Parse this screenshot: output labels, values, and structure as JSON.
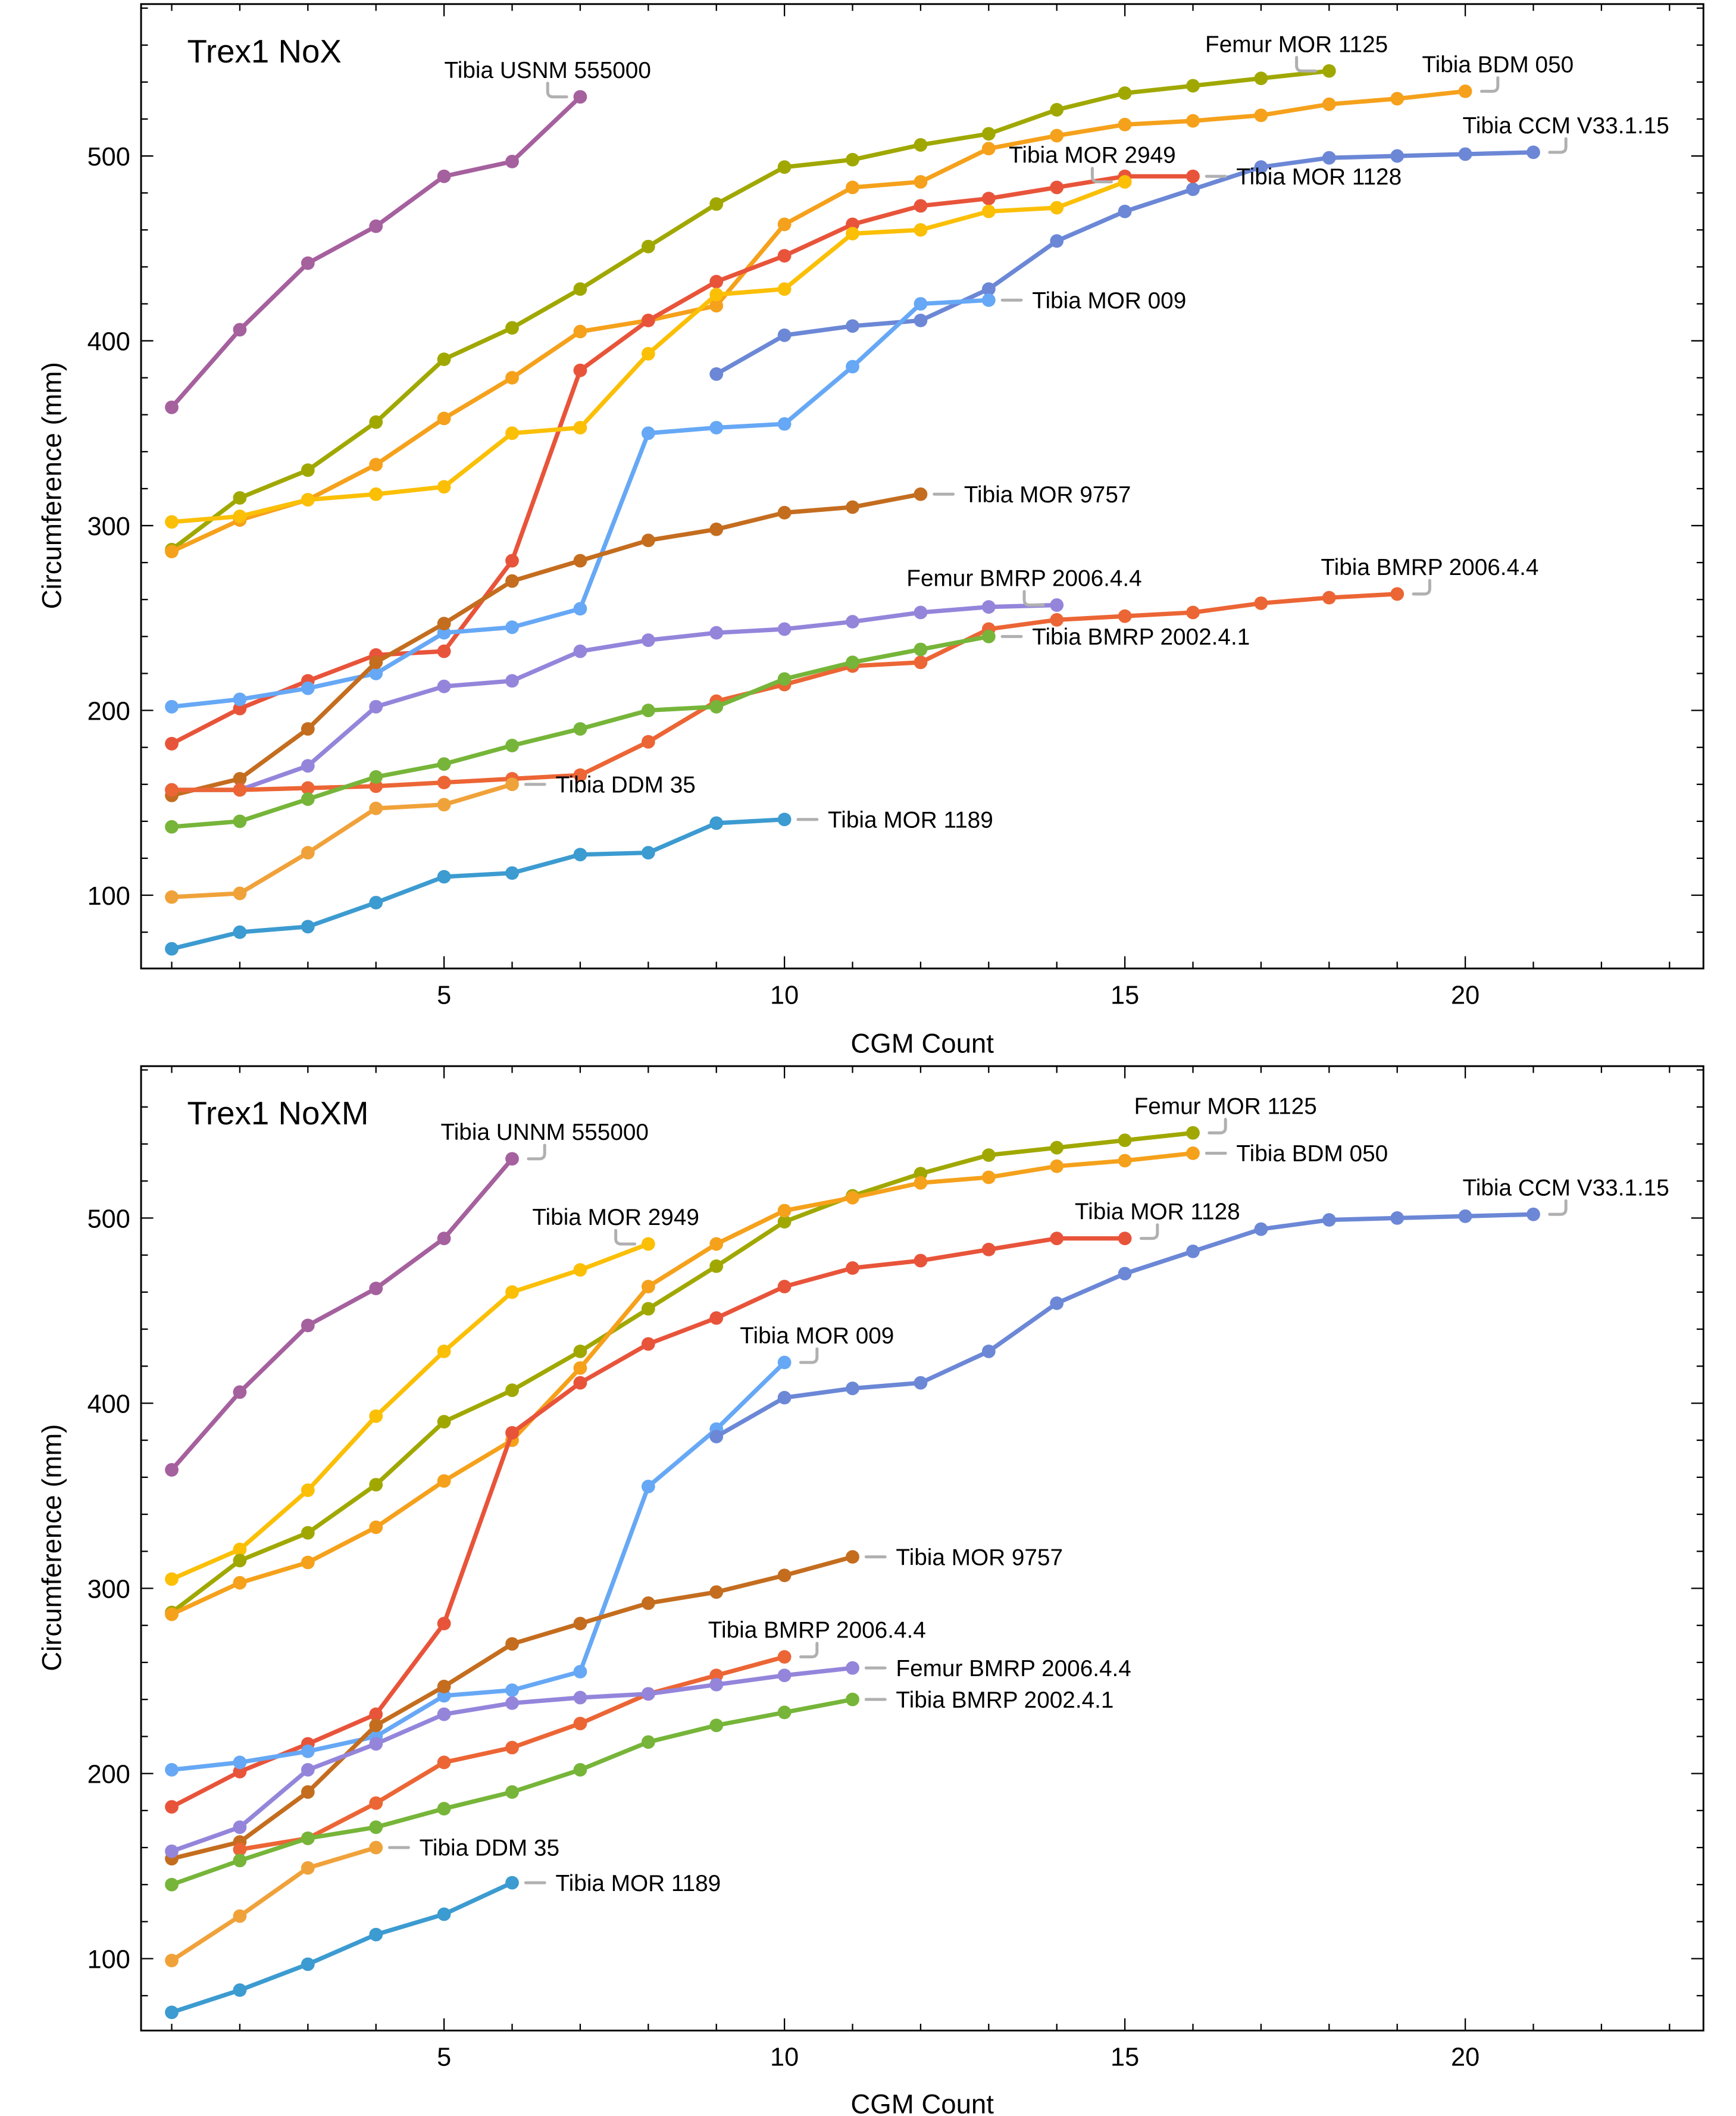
{
  "chart_data": [
    {
      "type": "line",
      "title": "Trex1 NoX",
      "xlabel": "CGM Count",
      "ylabel": "Circumference (mm)",
      "xlim": [
        0.55,
        23.5
      ],
      "ylim": [
        60,
        582
      ],
      "x_ticks": [
        5,
        10,
        15,
        20
      ],
      "y_ticks": [
        100,
        200,
        300,
        400,
        500
      ],
      "grid": false,
      "legend": "inline-labels",
      "series": [
        {
          "name": "Tibia USNM 555000",
          "color": "#a5609e",
          "x_start": 1,
          "values": [
            364,
            406,
            442,
            462,
            489,
            497,
            532
          ],
          "label_pos": "above-left"
        },
        {
          "name": "Femur MOR 1125",
          "color": "#a0a800",
          "x_start": 1,
          "values": [
            287,
            315,
            330,
            356,
            390,
            407,
            428,
            451,
            474,
            494,
            498,
            506,
            512,
            525,
            534,
            538,
            542,
            546
          ],
          "label_pos": "above-left"
        },
        {
          "name": "Tibia BDM 050",
          "color": "#f5a11b",
          "x_start": 1,
          "values": [
            286,
            303,
            314,
            333,
            358,
            380,
            405,
            411,
            419,
            463,
            483,
            486,
            504,
            511,
            517,
            519,
            522,
            528,
            531,
            535
          ],
          "label_pos": "above-right"
        },
        {
          "name": "Tibia CCM V33.1.15",
          "color": "#6b87d6",
          "x_start": 9,
          "values": [
            382,
            403,
            408,
            411,
            428,
            454,
            470,
            482,
            494,
            499,
            500,
            501,
            502
          ],
          "label_pos": "above-right"
        },
        {
          "name": "Tibia MOR 1128",
          "color": "#e8543a",
          "x_start": 1,
          "values": [
            182,
            201,
            216,
            230,
            232,
            281,
            384,
            411,
            432,
            446,
            463,
            473,
            477,
            483,
            489,
            489
          ],
          "label_pos": "right"
        },
        {
          "name": "Tibia MOR 2949",
          "color": "#fbbf06",
          "x_start": 1,
          "values": [
            302,
            305,
            314,
            317,
            321,
            350,
            353,
            393,
            425,
            428,
            458,
            460,
            470,
            472,
            486
          ],
          "label_pos": "above-left"
        },
        {
          "name": "Tibia MOR 009",
          "color": "#66a8f5",
          "x_start": 1,
          "values": [
            202,
            206,
            212,
            220,
            242,
            245,
            255,
            350,
            353,
            355,
            386,
            420,
            422
          ],
          "label_pos": "right"
        },
        {
          "name": "Tibia MOR 9757",
          "color": "#c46d1f",
          "x_start": 1,
          "values": [
            154,
            163,
            190,
            226,
            247,
            270,
            281,
            292,
            298,
            307,
            310,
            317
          ],
          "label_pos": "right"
        },
        {
          "name": "Femur BMRP 2006.4.4",
          "color": "#9485db",
          "x_start": 1,
          "values": [
            157,
            157,
            170,
            202,
            213,
            216,
            232,
            238,
            242,
            244,
            248,
            253,
            256,
            257
          ],
          "label_pos": "above-left"
        },
        {
          "name": "Tibia BMRP 2006.4.4",
          "color": "#ec6535",
          "x_start": 1,
          "values": [
            157,
            157,
            158,
            159,
            161,
            163,
            165,
            183,
            205,
            214,
            224,
            226,
            244,
            249,
            251,
            253,
            258,
            261,
            263
          ],
          "label_pos": "above-right"
        },
        {
          "name": "Tibia BMRP 2002.4.1",
          "color": "#76b539",
          "x_start": 1,
          "values": [
            137,
            140,
            152,
            164,
            171,
            181,
            190,
            200,
            202,
            217,
            226,
            233,
            240
          ],
          "label_pos": "right"
        },
        {
          "name": "Tibia DDM 35",
          "color": "#f0a23a",
          "x_start": 1,
          "values": [
            99,
            101,
            123,
            147,
            149,
            160
          ],
          "label_pos": "right"
        },
        {
          "name": "Tibia MOR 1189",
          "color": "#3c9bd0",
          "x_start": 1,
          "values": [
            71,
            80,
            83,
            96,
            110,
            112,
            122,
            123,
            139,
            141
          ],
          "label_pos": "right"
        }
      ]
    },
    {
      "type": "line",
      "title": "Trex1 NoXM",
      "xlabel": "CGM Count",
      "ylabel": "Circumference (mm)",
      "xlim": [
        0.55,
        23.5
      ],
      "ylim": [
        60,
        582
      ],
      "x_ticks": [
        5,
        10,
        15,
        20
      ],
      "y_ticks": [
        100,
        200,
        300,
        400,
        500
      ],
      "grid": false,
      "legend": "inline-labels",
      "series": [
        {
          "name": "Tibia UNNM 555000",
          "color": "#a5609e",
          "x_start": 1,
          "values": [
            364,
            406,
            442,
            462,
            489,
            532
          ],
          "label_pos": "above-right"
        },
        {
          "name": "Tibia MOR 2949",
          "color": "#fbbf06",
          "x_start": 1,
          "values": [
            305,
            321,
            353,
            393,
            428,
            460,
            472,
            486
          ],
          "label_pos": "above-left"
        },
        {
          "name": "Femur MOR 1125",
          "color": "#a0a800",
          "x_start": 1,
          "values": [
            287,
            315,
            330,
            356,
            390,
            407,
            428,
            451,
            474,
            498,
            512,
            524,
            534,
            538,
            542,
            546
          ],
          "label_pos": "above-right"
        },
        {
          "name": "Tibia BDM 050",
          "color": "#f5a11b",
          "x_start": 1,
          "values": [
            286,
            303,
            314,
            333,
            358,
            380,
            419,
            463,
            486,
            504,
            511,
            519,
            522,
            528,
            531,
            535
          ],
          "label_pos": "right"
        },
        {
          "name": "Tibia MOR 1128",
          "color": "#e8543a",
          "x_start": 1,
          "values": [
            182,
            201,
            216,
            232,
            281,
            384,
            411,
            432,
            446,
            463,
            473,
            477,
            483,
            489,
            489
          ],
          "label_pos": "above-right"
        },
        {
          "name": "Tibia MOR 009",
          "color": "#66a8f5",
          "x_start": 1,
          "values": [
            202,
            206,
            212,
            220,
            242,
            245,
            255,
            355,
            386,
            422
          ],
          "label_pos": "above-right"
        },
        {
          "name": "Tibia CCM V33.1.15",
          "color": "#6b87d6",
          "x_start": 9,
          "values": [
            382,
            403,
            408,
            411,
            428,
            454,
            470,
            482,
            494,
            499,
            500,
            501,
            502
          ],
          "label_pos": "above-right"
        },
        {
          "name": "Tibia MOR 9757",
          "color": "#c46d1f",
          "x_start": 1,
          "values": [
            154,
            163,
            190,
            226,
            247,
            270,
            281,
            292,
            298,
            307,
            317
          ],
          "label_pos": "right"
        },
        {
          "name": "Tibia BMRP 2006.4.4",
          "color": "#ec6535",
          "x_start": 2,
          "values": [
            159,
            165,
            184,
            206,
            214,
            227,
            243,
            253,
            263
          ],
          "label_pos": "above-right"
        },
        {
          "name": "Femur BMRP 2006.4.4",
          "color": "#9485db",
          "x_start": 1,
          "values": [
            158,
            171,
            202,
            216,
            232,
            238,
            241,
            243,
            248,
            253,
            257
          ],
          "label_pos": "right"
        },
        {
          "name": "Tibia BMRP 2002.4.1",
          "color": "#76b539",
          "x_start": 1,
          "values": [
            140,
            153,
            165,
            171,
            181,
            190,
            202,
            217,
            226,
            233,
            240
          ],
          "label_pos": "right"
        },
        {
          "name": "Tibia DDM 35",
          "color": "#f0a23a",
          "x_start": 1,
          "values": [
            99,
            123,
            149,
            160
          ],
          "label_pos": "right"
        },
        {
          "name": "Tibia MOR 1189",
          "color": "#3c9bd0",
          "x_start": 1,
          "values": [
            71,
            83,
            97,
            113,
            124,
            141
          ],
          "label_pos": "right"
        }
      ]
    }
  ]
}
